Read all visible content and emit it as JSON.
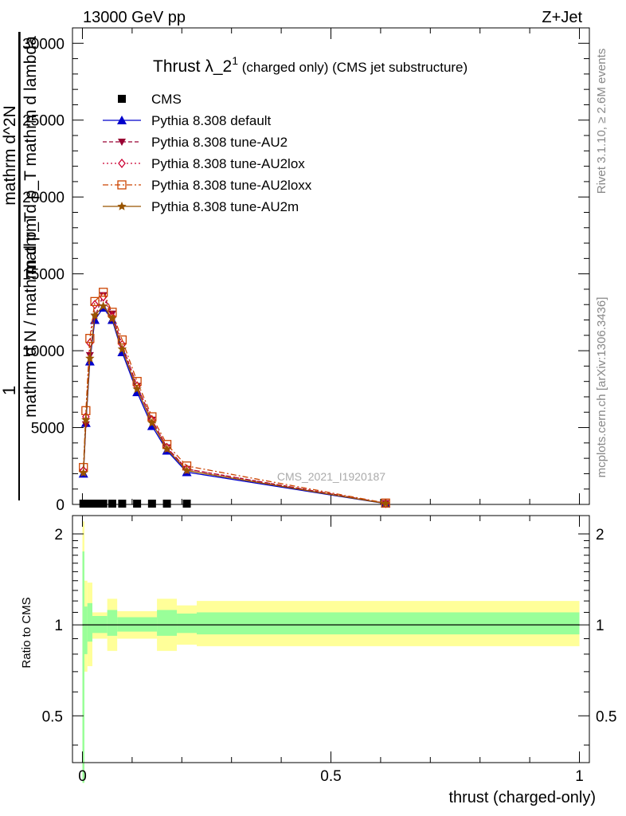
{
  "header": {
    "energy": "13000 GeV pp",
    "process": "Z+Jet"
  },
  "side_labels": {
    "rivet": "Rivet 3.1.10, ≥ 2.6M events",
    "mcplots": "mcplots.cern.ch [arXiv:1306.3436]"
  },
  "chart_data": [
    {
      "type": "line",
      "title_main": "Thrust λ_2",
      "title_sup": "1",
      "title_rest": " (charged only) (CMS jet substructure)",
      "ylabel_parts": [
        "1",
        "mathrm d N / mathrm d p_T",
        "mathrm d^2N",
        "mathrm d p_T mathrm d lambda"
      ],
      "xlim": [
        -0.02,
        1.02
      ],
      "ylim": [
        0,
        31000
      ],
      "yticks": [
        0,
        5000,
        10000,
        15000,
        20000,
        25000,
        30000
      ],
      "ytick_labels": [
        "0",
        "5000",
        "10000",
        "15000",
        "20000",
        "25000",
        "30000"
      ],
      "watermark": "CMS_2021_I1920187",
      "legend_position": "top-left",
      "series": [
        {
          "name": "CMS",
          "color": "#000000",
          "marker": "square",
          "style": "none",
          "x": [
            0.002,
            0.007,
            0.015,
            0.03,
            0.042,
            0.06,
            0.08,
            0.11,
            0.14,
            0.17,
            0.21
          ],
          "y": [
            0,
            0,
            0,
            0,
            0,
            0,
            0,
            0,
            0,
            0,
            0
          ]
        },
        {
          "name": "Pythia 8.308 default",
          "color": "#0000cc",
          "marker": "triangle-up",
          "style": "solid",
          "x": [
            0.002,
            0.007,
            0.015,
            0.025,
            0.042,
            0.06,
            0.08,
            0.11,
            0.14,
            0.17,
            0.21,
            0.61
          ],
          "y": [
            2000,
            5300,
            9300,
            12000,
            12800,
            12000,
            9900,
            7300,
            5100,
            3500,
            2100,
            50
          ]
        },
        {
          "name": "Pythia 8.308 tune-AU2",
          "color": "#990033",
          "marker": "triangle-down",
          "style": "dashed",
          "x": [
            0.002,
            0.007,
            0.015,
            0.025,
            0.042,
            0.06,
            0.08,
            0.11,
            0.14,
            0.17,
            0.21,
            0.61
          ],
          "y": [
            2100,
            5200,
            9700,
            12200,
            13600,
            12400,
            10300,
            7700,
            5500,
            3700,
            2300,
            80
          ]
        },
        {
          "name": "Pythia 8.308 tune-AU2lox",
          "color": "#cc0033",
          "marker": "diamond-open",
          "style": "dotted",
          "x": [
            0.002,
            0.007,
            0.015,
            0.025,
            0.042,
            0.06,
            0.08,
            0.11,
            0.14,
            0.17,
            0.21,
            0.61
          ],
          "y": [
            2200,
            5700,
            10500,
            13000,
            13500,
            12200,
            10400,
            7700,
            5500,
            3700,
            2300,
            70
          ]
        },
        {
          "name": "Pythia 8.308 tune-AU2loxx",
          "color": "#cc4400",
          "marker": "square-open",
          "style": "dashdot",
          "x": [
            0.002,
            0.007,
            0.015,
            0.025,
            0.042,
            0.06,
            0.08,
            0.11,
            0.14,
            0.17,
            0.21,
            0.61
          ],
          "y": [
            2400,
            6100,
            10800,
            13200,
            13800,
            12500,
            10700,
            8000,
            5700,
            3900,
            2500,
            90
          ]
        },
        {
          "name": "Pythia 8.308 tune-AU2m",
          "color": "#995500",
          "marker": "star",
          "style": "solid",
          "x": [
            0.002,
            0.007,
            0.015,
            0.025,
            0.042,
            0.06,
            0.08,
            0.11,
            0.14,
            0.17,
            0.21,
            0.61
          ],
          "y": [
            2050,
            5500,
            9500,
            12300,
            12900,
            12100,
            10100,
            7500,
            5300,
            3600,
            2200,
            60
          ]
        }
      ]
    },
    {
      "type": "area",
      "ylabel": "Ratio to CMS",
      "xlabel": "thrust (charged-only)",
      "xlim": [
        -0.02,
        1.02
      ],
      "ylim": [
        0.35,
        2.3
      ],
      "yticks": [
        0.5,
        1,
        2
      ],
      "ytick_labels": [
        "0.5",
        "1",
        "2"
      ],
      "xticks": [
        0,
        0.5,
        1
      ],
      "xtick_labels": [
        "0",
        "0.5",
        "1"
      ],
      "band_colors": {
        "stat": "#99ff99",
        "total": "#ffff99"
      },
      "bins": [
        {
          "x0": 0.0,
          "x1": 0.004,
          "g_lo": 0.3,
          "g_hi": 1.75,
          "y_lo": 0.3,
          "y_hi": 2.2
        },
        {
          "x0": 0.004,
          "x1": 0.01,
          "g_lo": 0.8,
          "g_hi": 1.15,
          "y_lo": 0.7,
          "y_hi": 1.4
        },
        {
          "x0": 0.01,
          "x1": 0.02,
          "g_lo": 0.88,
          "g_hi": 1.18,
          "y_lo": 0.73,
          "y_hi": 1.38
        },
        {
          "x0": 0.02,
          "x1": 0.05,
          "g_lo": 0.94,
          "g_hi": 1.07,
          "y_lo": 0.9,
          "y_hi": 1.1
        },
        {
          "x0": 0.05,
          "x1": 0.07,
          "g_lo": 0.92,
          "g_hi": 1.12,
          "y_lo": 0.82,
          "y_hi": 1.22
        },
        {
          "x0": 0.07,
          "x1": 0.15,
          "g_lo": 0.95,
          "g_hi": 1.06,
          "y_lo": 0.9,
          "y_hi": 1.11
        },
        {
          "x0": 0.15,
          "x1": 0.19,
          "g_lo": 0.92,
          "g_hi": 1.12,
          "y_lo": 0.82,
          "y_hi": 1.22
        },
        {
          "x0": 0.19,
          "x1": 0.23,
          "g_lo": 0.94,
          "g_hi": 1.09,
          "y_lo": 0.86,
          "y_hi": 1.16
        },
        {
          "x0": 0.23,
          "x1": 1.0,
          "g_lo": 0.93,
          "g_hi": 1.1,
          "y_lo": 0.85,
          "y_hi": 1.2
        }
      ]
    }
  ]
}
